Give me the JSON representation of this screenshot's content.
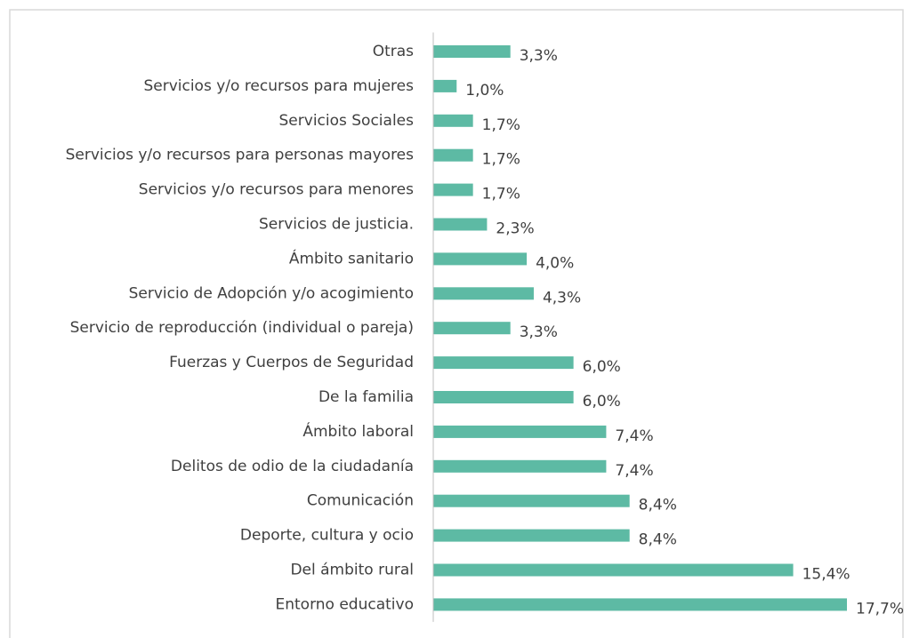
{
  "chart_data": {
    "type": "bar",
    "orientation": "horizontal",
    "color": "#5dbaa4",
    "categories": [
      "Otras",
      "Servicios y/o recursos para mujeres",
      "Servicios Sociales",
      "Servicios y/o recursos para personas mayores",
      "Servicios y/o recursos para menores",
      "Servicios de justicia.",
      "Ámbito sanitario",
      "Servicio de Adopción y/o acogimiento",
      "Servicio de reproducción (individual o pareja)",
      "Fuerzas y Cuerpos de Seguridad",
      "De la familia",
      "Ámbito laboral",
      "Delitos de odio de la ciudadanía",
      "Comunicación",
      "Deporte, cultura y ocio",
      "Del ámbito rural",
      "Entorno educativo"
    ],
    "values": [
      3.3,
      1.0,
      1.7,
      1.7,
      1.7,
      2.3,
      4.0,
      4.3,
      3.3,
      6.0,
      6.0,
      7.4,
      7.4,
      8.4,
      8.4,
      15.4,
      17.7
    ],
    "value_labels": [
      "3,3%",
      "1,0%",
      "1,7%",
      "1,7%",
      "1,7%",
      "2,3%",
      "4,0%",
      "4,3%",
      "3,3%",
      "6,0%",
      "6,0%",
      "7,4%",
      "7,4%",
      "8,4%",
      "8,4%",
      "15,4%",
      "17,7%"
    ]
  }
}
